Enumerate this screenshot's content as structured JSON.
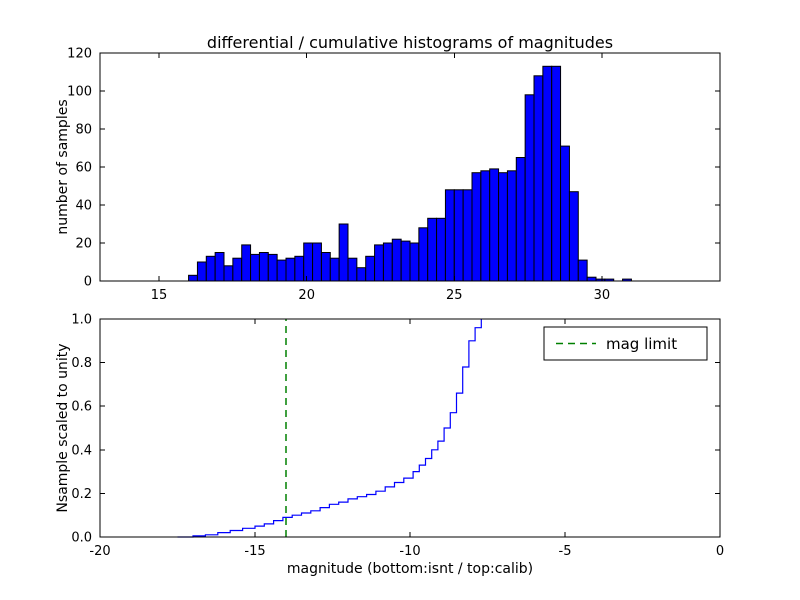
{
  "figure": {
    "title": "differential / cumulative histograms of magnitudes",
    "xlabel": "magnitude (bottom:isnt / top:calib)",
    "background_color": "#ffffff",
    "axis_color": "#000000"
  },
  "chart_data": [
    {
      "type": "bar",
      "name": "differential-histogram",
      "ylabel": "number of samples",
      "xlim": [
        13,
        34
      ],
      "ylim": [
        0,
        120
      ],
      "xticks": [
        15,
        20,
        25,
        30
      ],
      "xtick_labels": [
        "15",
        "20",
        "25",
        "30"
      ],
      "yticks": [
        0,
        20,
        40,
        60,
        80,
        100,
        120
      ],
      "ytick_labels": [
        "0",
        "20",
        "40",
        "60",
        "80",
        "100",
        "120"
      ],
      "bin_start": 16.0,
      "bin_width": 0.3,
      "values": [
        3,
        10,
        13,
        15,
        8,
        12,
        19,
        14,
        15,
        14,
        11,
        12,
        13,
        20,
        20,
        15,
        12,
        30,
        12,
        7,
        13,
        19,
        20,
        22,
        21,
        20,
        28,
        33,
        33,
        48,
        48,
        48,
        57,
        58,
        59,
        57,
        58,
        65,
        98,
        108,
        113,
        113,
        71,
        47,
        11,
        2,
        1,
        1,
        0,
        1
      ],
      "bar_color": "#0000ff",
      "bar_edge_color": "#000000",
      "grid": false
    },
    {
      "type": "line",
      "name": "cumulative-histogram",
      "ylabel": "Nsample scaled to unity",
      "xlim": [
        -20,
        0
      ],
      "ylim": [
        0.0,
        1.0
      ],
      "xticks": [
        -20,
        -15,
        -10,
        -5,
        0
      ],
      "xtick_labels": [
        "-20",
        "-15",
        "-10",
        "-5",
        "0"
      ],
      "yticks": [
        0.0,
        0.2,
        0.4,
        0.6,
        0.8,
        1.0
      ],
      "ytick_labels": [
        "0.0",
        "0.2",
        "0.4",
        "0.6",
        "0.8",
        "1.0"
      ],
      "line_color": "#0000ff",
      "steps": [
        [
          -17.5,
          0.0
        ],
        [
          -17.0,
          0.005
        ],
        [
          -16.6,
          0.01
        ],
        [
          -16.2,
          0.02
        ],
        [
          -15.8,
          0.03
        ],
        [
          -15.4,
          0.04
        ],
        [
          -15.0,
          0.05
        ],
        [
          -14.7,
          0.06
        ],
        [
          -14.4,
          0.075
        ],
        [
          -14.1,
          0.09
        ],
        [
          -13.8,
          0.1
        ],
        [
          -13.5,
          0.11
        ],
        [
          -13.2,
          0.12
        ],
        [
          -12.9,
          0.135
        ],
        [
          -12.6,
          0.15
        ],
        [
          -12.3,
          0.16
        ],
        [
          -12.0,
          0.175
        ],
        [
          -11.7,
          0.185
        ],
        [
          -11.4,
          0.195
        ],
        [
          -11.1,
          0.21
        ],
        [
          -10.8,
          0.23
        ],
        [
          -10.5,
          0.25
        ],
        [
          -10.2,
          0.27
        ],
        [
          -9.9,
          0.3
        ],
        [
          -9.7,
          0.33
        ],
        [
          -9.5,
          0.36
        ],
        [
          -9.3,
          0.4
        ],
        [
          -9.1,
          0.44
        ],
        [
          -8.9,
          0.5
        ],
        [
          -8.7,
          0.57
        ],
        [
          -8.5,
          0.66
        ],
        [
          -8.3,
          0.78
        ],
        [
          -8.1,
          0.9
        ],
        [
          -7.9,
          0.96
        ],
        [
          -7.7,
          1.0
        ]
      ],
      "vline": {
        "x": -14,
        "color": "#008000",
        "dash": "7 5",
        "label": "mag limit"
      },
      "legend": {
        "entries": [
          "mag limit"
        ],
        "position": "upper right"
      },
      "grid": false
    }
  ]
}
